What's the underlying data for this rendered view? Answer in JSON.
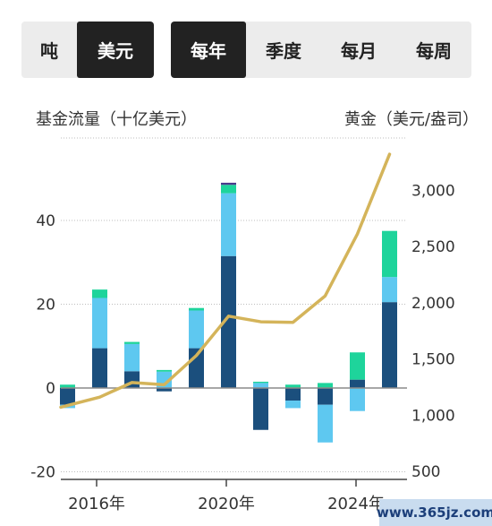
{
  "toolbar": {
    "unit_options": [
      {
        "label": "吨",
        "active": false
      },
      {
        "label": "美元",
        "active": true
      }
    ],
    "period_options": [
      {
        "label": "每年",
        "active": true
      },
      {
        "label": "季度",
        "active": false
      },
      {
        "label": "每月",
        "active": false
      },
      {
        "label": "每周",
        "active": false
      }
    ]
  },
  "chart_data": {
    "type": "bar",
    "stacked": true,
    "ylabel": "基金流量（十亿美元）",
    "y2label": "黄金（美元/盎司）",
    "ylim": [
      -20,
      60
    ],
    "y_ticks": [
      -20,
      0,
      20,
      40
    ],
    "y_tick_labels": [
      "-20",
      "0",
      "20",
      "40"
    ],
    "y2lim": [
      500,
      3500
    ],
    "y2_ticks": [
      500,
      1000,
      1500,
      2000,
      2500,
      3000
    ],
    "y2_tick_labels": [
      "500",
      "1,000",
      "1,500",
      "2,000",
      "2,500",
      "3,000"
    ],
    "categories": [
      "2015",
      "2016",
      "2017",
      "2018",
      "2019",
      "2020",
      "2021",
      "2022",
      "2023",
      "2024",
      "2025"
    ],
    "x_tick_labels": [
      "2016年",
      "2020年",
      "2024年"
    ],
    "x_tick_categories": [
      "2016",
      "2020",
      "2024"
    ],
    "grid": true,
    "series": [
      {
        "color": "#1b4f7d",
        "values": [
          -4,
          9.5,
          4,
          -0.8,
          9.5,
          31.5,
          -10,
          -3,
          -4,
          2,
          20.5
        ]
      },
      {
        "color": "#5ec8f0",
        "values": [
          -0.8,
          12,
          6.5,
          3.9,
          9,
          15,
          1.2,
          -1.8,
          -9,
          -5.5,
          6
        ]
      },
      {
        "color": "#1ed49b",
        "values": [
          0.8,
          2,
          0.5,
          0.4,
          0.6,
          2,
          0.3,
          0.8,
          1.2,
          6.5,
          11
        ]
      },
      {
        "color": "#4b3a8c",
        "values": [
          0,
          0,
          0,
          0,
          0,
          0.5,
          0,
          0,
          0,
          0,
          0
        ]
      }
    ],
    "line": {
      "color": "#d4b45a",
      "values": [
        1070,
        1160,
        1290,
        1270,
        1530,
        1880,
        1830,
        1825,
        2060,
        2610,
        3320
      ]
    }
  },
  "watermark": "www.365jz.com"
}
